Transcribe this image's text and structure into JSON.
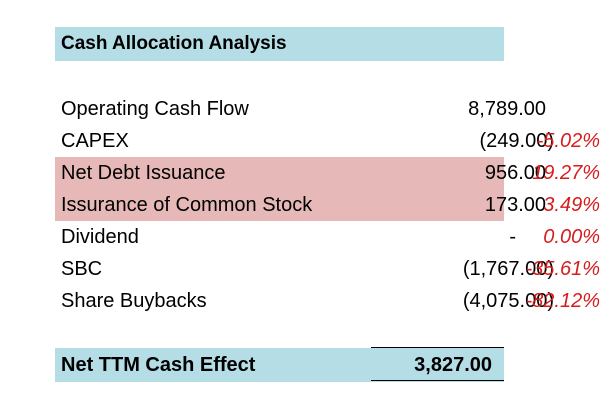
{
  "title": "Cash Allocation Analysis",
  "rows": [
    {
      "label": "Operating Cash Flow",
      "value": "8,789.00",
      "pct": ""
    },
    {
      "label": "CAPEX",
      "value": "(249.00)",
      "pct": "-5.02%"
    },
    {
      "label": "Net Debt Issuance",
      "value": "956.00",
      "pct": "19.27%"
    },
    {
      "label": "Issurance of Common Stock",
      "value": "173.00",
      "pct": "3.49%"
    },
    {
      "label": "Dividend",
      "value": "-",
      "pct": "0.00%"
    },
    {
      "label": "SBC",
      "value": "(1,767.00)",
      "pct": "-35.61%"
    },
    {
      "label": "Share Buybacks",
      "value": "(4,075.00)",
      "pct": "-82.12%"
    }
  ],
  "total": {
    "label": "Net TTM Cash Effect",
    "value": "3,827.00"
  },
  "colors": {
    "header_fill": "#b4dde6",
    "highlight_fill": "#e6b8b8",
    "percent_text": "#d81c1c"
  }
}
